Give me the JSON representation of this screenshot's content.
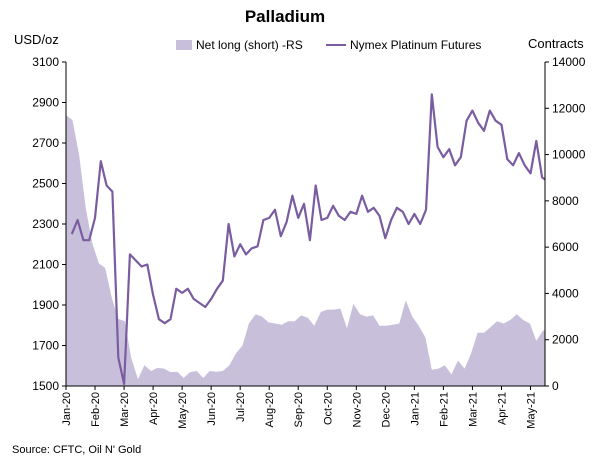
{
  "chart_data": {
    "type": "area+line",
    "title": "Palladium",
    "source": "Source: CFTC, Oil N' Gold",
    "left_axis": {
      "label": "USD/oz",
      "min": 1500,
      "max": 3100,
      "ticks": [
        "1500",
        "1700",
        "1900",
        "2100",
        "2300",
        "2500",
        "2700",
        "2900",
        "3100"
      ]
    },
    "right_axis": {
      "label": "Contracts",
      "min": 0,
      "max": 14000,
      "ticks": [
        "0",
        "2000",
        "4000",
        "6000",
        "8000",
        "10000",
        "12000",
        "14000"
      ]
    },
    "x_range": [
      0,
      16.5
    ],
    "x_ticks": [
      {
        "label": "Jan-20",
        "pos": 0
      },
      {
        "label": "Feb-20",
        "pos": 1
      },
      {
        "label": "Mar-20",
        "pos": 2
      },
      {
        "label": "Apr-20",
        "pos": 3
      },
      {
        "label": "May-20",
        "pos": 4
      },
      {
        "label": "Jun-20",
        "pos": 5
      },
      {
        "label": "Jul-20",
        "pos": 6
      },
      {
        "label": "Aug-20",
        "pos": 7
      },
      {
        "label": "Sep-20",
        "pos": 8
      },
      {
        "label": "Oct-20",
        "pos": 9
      },
      {
        "label": "Nov-20",
        "pos": 10
      },
      {
        "label": "Dec-20",
        "pos": 11
      },
      {
        "label": "Jan-21",
        "pos": 12
      },
      {
        "label": "Feb-21",
        "pos": 13
      },
      {
        "label": "Mar-21",
        "pos": 14
      },
      {
        "label": "Apr-21",
        "pos": 15
      },
      {
        "label": "May-21",
        "pos": 16
      }
    ],
    "series": [
      {
        "name": "Net long (short) -RS",
        "type": "area",
        "axis": "right",
        "color": "#c8c0da",
        "points": [
          [
            0.0,
            11700
          ],
          [
            0.22,
            11500
          ],
          [
            0.45,
            10000
          ],
          [
            0.68,
            7700
          ],
          [
            0.9,
            6200
          ],
          [
            1.13,
            5300
          ],
          [
            1.35,
            5100
          ],
          [
            1.58,
            3800
          ],
          [
            1.8,
            2900
          ],
          [
            2.03,
            2800
          ],
          [
            2.25,
            1200
          ],
          [
            2.48,
            300
          ],
          [
            2.7,
            900
          ],
          [
            2.93,
            650
          ],
          [
            3.15,
            780
          ],
          [
            3.38,
            750
          ],
          [
            3.6,
            600
          ],
          [
            3.83,
            620
          ],
          [
            4.05,
            350
          ],
          [
            4.28,
            600
          ],
          [
            4.5,
            650
          ],
          [
            4.73,
            350
          ],
          [
            4.95,
            650
          ],
          [
            5.18,
            620
          ],
          [
            5.4,
            650
          ],
          [
            5.63,
            900
          ],
          [
            5.85,
            1400
          ],
          [
            6.08,
            1750
          ],
          [
            6.3,
            2700
          ],
          [
            6.53,
            3100
          ],
          [
            6.75,
            3000
          ],
          [
            6.98,
            2750
          ],
          [
            7.2,
            2700
          ],
          [
            7.43,
            2650
          ],
          [
            7.65,
            2800
          ],
          [
            7.88,
            2800
          ],
          [
            8.1,
            3050
          ],
          [
            8.33,
            2950
          ],
          [
            8.55,
            2600
          ],
          [
            8.78,
            3200
          ],
          [
            9.0,
            3300
          ],
          [
            9.23,
            3300
          ],
          [
            9.45,
            3350
          ],
          [
            9.68,
            2500
          ],
          [
            9.9,
            3550
          ],
          [
            10.13,
            3100
          ],
          [
            10.35,
            3000
          ],
          [
            10.58,
            3050
          ],
          [
            10.8,
            2600
          ],
          [
            11.03,
            2600
          ],
          [
            11.25,
            2650
          ],
          [
            11.48,
            2700
          ],
          [
            11.7,
            3700
          ],
          [
            11.93,
            3000
          ],
          [
            12.15,
            2600
          ],
          [
            12.38,
            2100
          ],
          [
            12.6,
            700
          ],
          [
            12.83,
            750
          ],
          [
            13.05,
            900
          ],
          [
            13.28,
            500
          ],
          [
            13.5,
            1100
          ],
          [
            13.73,
            750
          ],
          [
            13.95,
            1400
          ],
          [
            14.18,
            2300
          ],
          [
            14.4,
            2300
          ],
          [
            14.63,
            2550
          ],
          [
            14.85,
            2800
          ],
          [
            15.08,
            2700
          ],
          [
            15.3,
            2850
          ],
          [
            15.53,
            3100
          ],
          [
            15.75,
            2850
          ],
          [
            15.98,
            2700
          ],
          [
            16.2,
            1950
          ],
          [
            16.43,
            2400
          ],
          [
            16.5,
            2400
          ]
        ]
      },
      {
        "name": "Nymex Platinum Futures",
        "type": "line",
        "axis": "left",
        "color": "#7a5ca0",
        "points": [
          [
            0.2,
            2250
          ],
          [
            0.4,
            2320
          ],
          [
            0.6,
            2220
          ],
          [
            0.8,
            2220
          ],
          [
            1.0,
            2330
          ],
          [
            1.2,
            2610
          ],
          [
            1.4,
            2490
          ],
          [
            1.6,
            2460
          ],
          [
            1.8,
            1640
          ],
          [
            2.0,
            1510
          ],
          [
            2.2,
            2150
          ],
          [
            2.4,
            2120
          ],
          [
            2.6,
            2090
          ],
          [
            2.8,
            2100
          ],
          [
            3.0,
            1950
          ],
          [
            3.2,
            1830
          ],
          [
            3.4,
            1810
          ],
          [
            3.6,
            1830
          ],
          [
            3.8,
            1980
          ],
          [
            4.0,
            1960
          ],
          [
            4.2,
            1980
          ],
          [
            4.4,
            1930
          ],
          [
            4.6,
            1910
          ],
          [
            4.8,
            1890
          ],
          [
            5.0,
            1930
          ],
          [
            5.2,
            1980
          ],
          [
            5.4,
            2020
          ],
          [
            5.6,
            2300
          ],
          [
            5.8,
            2140
          ],
          [
            6.0,
            2200
          ],
          [
            6.2,
            2150
          ],
          [
            6.4,
            2180
          ],
          [
            6.6,
            2190
          ],
          [
            6.8,
            2320
          ],
          [
            7.0,
            2330
          ],
          [
            7.2,
            2370
          ],
          [
            7.4,
            2240
          ],
          [
            7.6,
            2310
          ],
          [
            7.8,
            2440
          ],
          [
            8.0,
            2330
          ],
          [
            8.2,
            2400
          ],
          [
            8.4,
            2220
          ],
          [
            8.6,
            2490
          ],
          [
            8.8,
            2320
          ],
          [
            9.0,
            2330
          ],
          [
            9.2,
            2390
          ],
          [
            9.4,
            2340
          ],
          [
            9.6,
            2320
          ],
          [
            9.8,
            2360
          ],
          [
            10.0,
            2350
          ],
          [
            10.2,
            2440
          ],
          [
            10.4,
            2360
          ],
          [
            10.6,
            2380
          ],
          [
            10.8,
            2340
          ],
          [
            11.0,
            2230
          ],
          [
            11.2,
            2320
          ],
          [
            11.4,
            2380
          ],
          [
            11.6,
            2360
          ],
          [
            11.8,
            2300
          ],
          [
            12.0,
            2350
          ],
          [
            12.2,
            2300
          ],
          [
            12.4,
            2370
          ],
          [
            12.6,
            2940
          ],
          [
            12.8,
            2680
          ],
          [
            13.0,
            2630
          ],
          [
            13.2,
            2670
          ],
          [
            13.4,
            2590
          ],
          [
            13.6,
            2630
          ],
          [
            13.8,
            2810
          ],
          [
            14.0,
            2860
          ],
          [
            14.2,
            2800
          ],
          [
            14.4,
            2760
          ],
          [
            14.6,
            2860
          ],
          [
            14.8,
            2810
          ],
          [
            15.0,
            2790
          ],
          [
            15.2,
            2620
          ],
          [
            15.4,
            2590
          ],
          [
            15.6,
            2650
          ],
          [
            15.8,
            2590
          ],
          [
            16.0,
            2550
          ],
          [
            16.2,
            2710
          ],
          [
            16.4,
            2530
          ],
          [
            16.5,
            2520
          ]
        ]
      }
    ]
  }
}
